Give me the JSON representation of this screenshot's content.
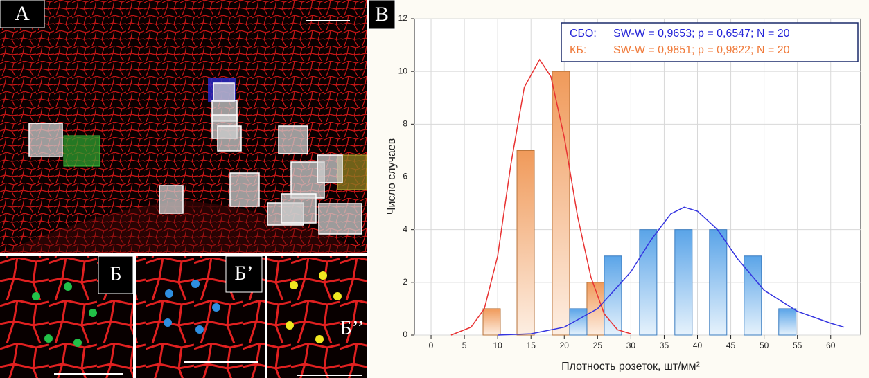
{
  "panels": {
    "a": "A",
    "b": "B",
    "b1": "Б",
    "b2": "Б’",
    "b3": "Б’’"
  },
  "chart_data": {
    "type": "bar",
    "x_label": "Плотность розеток, шт/мм²",
    "y_label": "Число случаев",
    "xlim": [
      -2.5,
      64.5
    ],
    "xticks": [
      0,
      5,
      10,
      15,
      20,
      25,
      30,
      35,
      40,
      45,
      50,
      55,
      60
    ],
    "ylim": [
      0,
      12
    ],
    "yticks": [
      0,
      2,
      4,
      6,
      8,
      10,
      12
    ],
    "grid": true,
    "series": [
      {
        "name": "КБ:",
        "stats": "SW-W = 0,9851; p = 0,9822; N = 20",
        "color": "#b8733a",
        "text_color": "#f07a3a",
        "curve_color": "#e83232",
        "x": [
          9.1,
          14.2,
          19.5,
          24.7
        ],
        "values": [
          1,
          7,
          10,
          2
        ],
        "fit": {
          "x": [
            3,
            6,
            8,
            10,
            12,
            14,
            16.3,
            18,
            20,
            22,
            24,
            26,
            28,
            30
          ],
          "y": [
            0,
            0.3,
            1.0,
            3.0,
            6.5,
            9.4,
            10.45,
            9.8,
            7.5,
            4.5,
            2.2,
            0.8,
            0.2,
            0.05
          ]
        }
      },
      {
        "name": "СБО:",
        "stats": "SW-W = 0,9653; p = 0,6547; N = 20",
        "color": "#3a7cc0",
        "text_color": "#2525d8",
        "curve_color": "#3434e0",
        "x": [
          22.1,
          27.3,
          32.6,
          37.9,
          43.1,
          48.3,
          53.5
        ],
        "values": [
          1,
          3,
          4,
          4,
          4,
          3,
          1
        ],
        "fit": {
          "x": [
            10,
            15,
            20,
            25,
            30,
            33,
            36,
            38,
            40,
            43,
            46,
            50,
            55,
            60,
            62
          ],
          "y": [
            0,
            0.05,
            0.3,
            1.0,
            2.4,
            3.6,
            4.6,
            4.85,
            4.7,
            4.0,
            2.9,
            1.7,
            0.9,
            0.45,
            0.3
          ]
        }
      }
    ]
  }
}
